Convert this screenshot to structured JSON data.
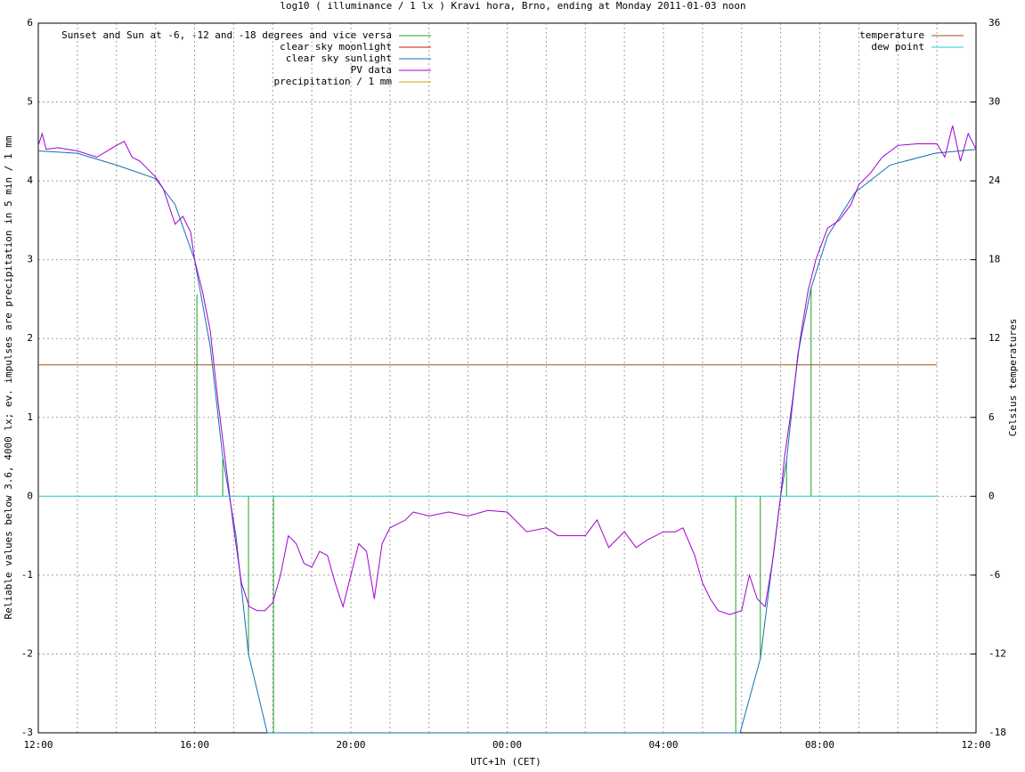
{
  "chart_data": {
    "type": "line",
    "title": "log10 ( illuminance / 1 lx ) Kravi hora, Brno, ending at Monday 2011-01-03 noon",
    "xlabel": "UTC+1h (CET)",
    "ylabel": "Reliable values below 3.6, 4000 lx; ev. impulses are precipitation in 5 min / 1 mm",
    "y2label": "Celsius temperatures",
    "xlim": [
      0,
      24
    ],
    "xticks": [
      {
        "value": 0,
        "label": "12:00"
      },
      {
        "value": 4,
        "label": "16:00"
      },
      {
        "value": 8,
        "label": "20:00"
      },
      {
        "value": 12,
        "label": "00:00"
      },
      {
        "value": 16,
        "label": "04:00"
      },
      {
        "value": 20,
        "label": "08:00"
      },
      {
        "value": 24,
        "label": "12:00"
      }
    ],
    "xminorticks": [
      1,
      2,
      3,
      5,
      6,
      7,
      9,
      10,
      11,
      13,
      14,
      15,
      17,
      18,
      19,
      21,
      22,
      23
    ],
    "ylim": [
      -3,
      6
    ],
    "yticks": [
      -3,
      -2,
      -1,
      0,
      1,
      2,
      3,
      4,
      5,
      6
    ],
    "y2lim": [
      -18,
      36
    ],
    "y2ticks": [
      -18,
      -12,
      -6,
      0,
      6,
      12,
      18,
      24,
      30,
      36
    ],
    "grid": true,
    "series": [
      {
        "name": "Sunset and Sun at -6, -12 and -18 degrees and vice versa",
        "color": "#20a020",
        "style": "impulses",
        "legend": "top-left",
        "x": [
          4.06,
          4.72,
          5.38,
          6.02,
          17.85,
          18.48,
          19.15,
          19.78
        ],
        "values": [
          2.56,
          0.47,
          -2.0,
          -3.0,
          -3.0,
          -2.06,
          0.45,
          2.64
        ]
      },
      {
        "name": "clear sky moonlight",
        "color": "#cc1010",
        "style": "line",
        "legend": "top-left",
        "x": [],
        "values": []
      },
      {
        "name": "clear sky sunlight",
        "color": "#1070b0",
        "style": "line",
        "legend": "top-left",
        "x": [
          0,
          1,
          2,
          3,
          3.5,
          4.0,
          4.4,
          4.72,
          5.06,
          5.38,
          5.86,
          17.96,
          18.48,
          19.0,
          19.15,
          19.44,
          19.78,
          20.2,
          20.9,
          21.8,
          22.95,
          24
        ],
        "values": [
          4.38,
          4.35,
          4.2,
          4.03,
          3.7,
          3.0,
          1.9,
          0.5,
          -0.5,
          -2.0,
          -3.0,
          -3.0,
          -2.06,
          0.0,
          0.45,
          1.8,
          2.64,
          3.3,
          3.85,
          4.2,
          4.35,
          4.4
        ]
      },
      {
        "name": "PV data",
        "color": "#a000d0",
        "style": "line",
        "legend": "top-left",
        "x": [
          0,
          0.1,
          0.2,
          0.5,
          1,
          1.5,
          2,
          2.2,
          2.4,
          2.6,
          2.8,
          3.0,
          3.2,
          3.4,
          3.5,
          3.7,
          3.9,
          4.0,
          4.2,
          4.4,
          4.6,
          4.8,
          5.0,
          5.2,
          5.4,
          5.6,
          5.8,
          6.0,
          6.2,
          6.4,
          6.6,
          6.8,
          7.0,
          7.2,
          7.4,
          7.6,
          7.8,
          8.0,
          8.2,
          8.4,
          8.6,
          8.8,
          9.0,
          9.4,
          9.6,
          10,
          10.5,
          11,
          11.5,
          12,
          12.5,
          13,
          13.3,
          13.6,
          14,
          14.3,
          14.6,
          15,
          15.3,
          15.6,
          16,
          16.3,
          16.5,
          16.8,
          17.0,
          17.2,
          17.4,
          17.7,
          18,
          18.2,
          18.4,
          18.6,
          18.8,
          19.0,
          19.1,
          19.3,
          19.5,
          19.7,
          19.9,
          20.2,
          20.5,
          20.8,
          21,
          21.3,
          21.6,
          22,
          22.5,
          23,
          23.2,
          23.4,
          23.6,
          23.8,
          24
        ],
        "values": [
          4.45,
          4.6,
          4.4,
          4.42,
          4.38,
          4.3,
          4.45,
          4.5,
          4.3,
          4.25,
          4.15,
          4.05,
          3.9,
          3.6,
          3.45,
          3.55,
          3.35,
          3.0,
          2.6,
          2.1,
          1.2,
          0.4,
          -0.4,
          -1.1,
          -1.4,
          -1.45,
          -1.45,
          -1.35,
          -1.0,
          -0.5,
          -0.6,
          -0.85,
          -0.9,
          -0.7,
          -0.75,
          -1.1,
          -1.4,
          -1.0,
          -0.6,
          -0.7,
          -1.3,
          -0.6,
          -0.4,
          -0.3,
          -0.2,
          -0.25,
          -0.2,
          -0.25,
          -0.18,
          -0.2,
          -0.45,
          -0.4,
          -0.5,
          -0.5,
          -0.5,
          -0.3,
          -0.65,
          -0.45,
          -0.65,
          -0.55,
          -0.45,
          -0.45,
          -0.4,
          -0.75,
          -1.1,
          -1.3,
          -1.45,
          -1.5,
          -1.45,
          -1.0,
          -1.3,
          -1.4,
          -0.8,
          0.0,
          0.5,
          1.2,
          2.0,
          2.6,
          3.0,
          3.4,
          3.5,
          3.7,
          3.95,
          4.1,
          4.3,
          4.45,
          4.47,
          4.47,
          4.3,
          4.7,
          4.25,
          4.6,
          4.4
        ]
      },
      {
        "name": "precipitation / 1 mm",
        "color": "#d0a000",
        "style": "impulses",
        "legend": "top-left",
        "x": [],
        "values": []
      },
      {
        "name": "temperature",
        "color": "#a05010",
        "style": "line",
        "axis": "y2",
        "legend": "top-right",
        "x": [
          0,
          23
        ],
        "values": [
          10,
          10
        ]
      },
      {
        "name": "dew point",
        "color": "#20d0d0",
        "style": "line",
        "axis": "y2",
        "legend": "top-right",
        "x": [
          0,
          23
        ],
        "values": [
          0,
          0
        ]
      }
    ]
  }
}
